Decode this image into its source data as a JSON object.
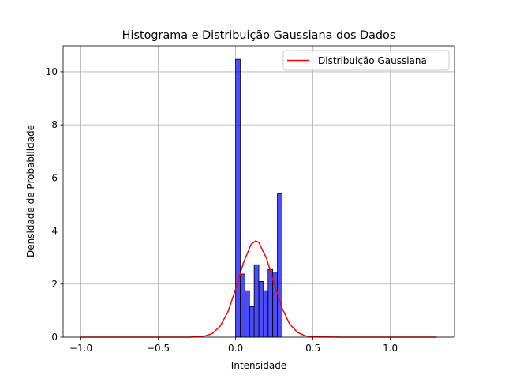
{
  "chart_data": {
    "type": "histogram",
    "title": "Histograma e Distribuição Gaussiana dos Dados",
    "x_label": "Intensidade",
    "y_label": "Densidade de Probabilidade",
    "bins": [
      0,
      0.03,
      0.06,
      0.09,
      0.12,
      0.15,
      0.18,
      0.21,
      0.24,
      0.27,
      0.3
    ],
    "values": [
      10.47,
      2.38,
      1.75,
      1.15,
      2.73,
      2.1,
      1.75,
      2.55,
      2.45,
      5.4
    ],
    "color": "blue",
    "alpha": 0.7,
    "edgecolor": "black",
    "series": [
      {
        "name": "Distribuição Gaussiana",
        "type": "line",
        "color": "red",
        "x": [
          -1.0,
          -0.5,
          -0.3,
          -0.2,
          -0.15,
          -0.1,
          -0.05,
          0,
          0.05,
          0.1,
          0.13,
          0.15,
          0.2,
          0.25,
          0.3,
          0.35,
          0.4,
          0.45,
          0.5,
          0.7,
          1.0,
          1.3
        ],
        "values": [
          0,
          0,
          0,
          0.04,
          0.14,
          0.41,
          0.95,
          1.81,
          2.79,
          3.5,
          3.63,
          3.57,
          2.97,
          2.0,
          1.1,
          0.49,
          0.18,
          0.05,
          0.01,
          0,
          0,
          0
        ]
      }
    ],
    "xlim": [
      -1.115,
      1.415
    ],
    "ylim": [
      0,
      10.98
    ],
    "xticks": [
      {
        "value": -1.0,
        "label": "−1.0"
      },
      {
        "value": -0.5,
        "label": "−0.5"
      },
      {
        "value": 0,
        "label": "0.0"
      },
      {
        "value": 0.5,
        "label": "0.5"
      },
      {
        "value": 1.0,
        "label": "1.0"
      }
    ],
    "yticks": [
      0,
      2,
      4,
      6,
      8,
      10
    ],
    "grid": true,
    "legend": "upper right"
  }
}
